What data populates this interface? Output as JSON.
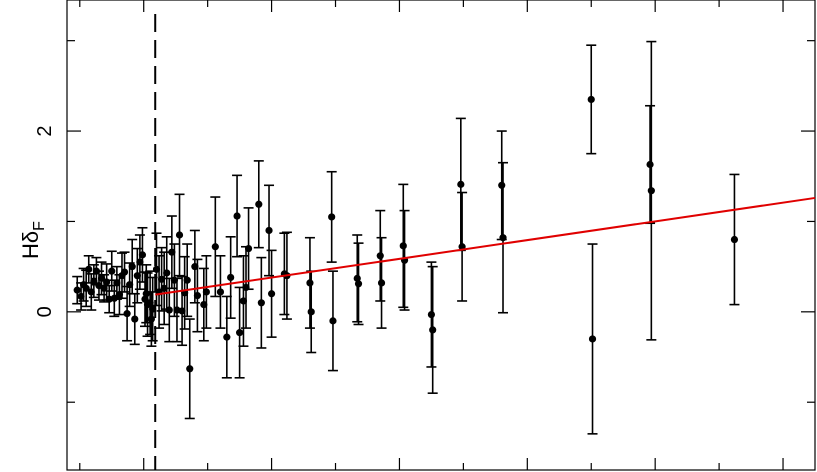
{
  "chart_data": {
    "type": "scatter",
    "title": "",
    "xlabel": "",
    "ylabel": "Hδ",
    "ylabel_subscript": "F",
    "xlim": [
      -0.6,
      5.25
    ],
    "ylim": [
      -1.75,
      3.45
    ],
    "x_major_ticks": [
      0,
      1,
      2,
      3,
      4,
      5
    ],
    "x_minor_ticks": [
      -0.5,
      0.5,
      1.5,
      2.5,
      3.5,
      4.5
    ],
    "y_major_ticks": [
      0,
      2
    ],
    "y_minor_ticks": [
      -1,
      1,
      3
    ],
    "y_tick_labels": [
      "0",
      "2"
    ],
    "grid": false,
    "colors": {
      "points": "#000000",
      "fit_line": "#e00000",
      "threshold_line": "#000000"
    },
    "vertical_dashed_line_x": 0.09,
    "fit_line": {
      "x": [
        0.09,
        5.25
      ],
      "y": [
        0.19,
        1.26
      ]
    },
    "points": [
      {
        "x": -0.52,
        "y": 0.24,
        "err": 0.15
      },
      {
        "x": -0.49,
        "y": 0.17,
        "err": 0.15
      },
      {
        "x": -0.47,
        "y": 0.3,
        "err": 0.18
      },
      {
        "x": -0.45,
        "y": 0.26,
        "err": 0.2
      },
      {
        "x": -0.43,
        "y": 0.47,
        "err": 0.15
      },
      {
        "x": -0.41,
        "y": 0.22,
        "err": 0.2
      },
      {
        "x": -0.39,
        "y": 0.34,
        "err": 0.18
      },
      {
        "x": -0.37,
        "y": 0.45,
        "err": 0.15
      },
      {
        "x": -0.35,
        "y": 0.29,
        "err": 0.16
      },
      {
        "x": -0.33,
        "y": 0.37,
        "err": 0.18
      },
      {
        "x": -0.31,
        "y": 0.26,
        "err": 0.15
      },
      {
        "x": -0.29,
        "y": 0.33,
        "err": 0.2
      },
      {
        "x": -0.27,
        "y": 0.14,
        "err": 0.15
      },
      {
        "x": -0.25,
        "y": 0.45,
        "err": 0.22
      },
      {
        "x": -0.23,
        "y": 0.15,
        "err": 0.2
      },
      {
        "x": -0.21,
        "y": 0.32,
        "err": 0.18
      },
      {
        "x": -0.19,
        "y": 0.19,
        "err": 0.22
      },
      {
        "x": -0.17,
        "y": 0.4,
        "err": 0.25
      },
      {
        "x": -0.15,
        "y": 0.44,
        "err": 0.22
      },
      {
        "x": -0.13,
        "y": -0.02,
        "err": 0.3
      },
      {
        "x": -0.11,
        "y": 0.3,
        "err": 0.24
      },
      {
        "x": -0.09,
        "y": 0.5,
        "err": 0.3
      },
      {
        "x": -0.07,
        "y": -0.08,
        "err": 0.28
      },
      {
        "x": -0.05,
        "y": 0.4,
        "err": 0.3
      },
      {
        "x": -0.03,
        "y": 0.55,
        "err": 0.3
      },
      {
        "x": -0.01,
        "y": 0.63,
        "err": 0.3
      },
      {
        "x": 0.01,
        "y": 0.14,
        "err": 0.3
      },
      {
        "x": 0.02,
        "y": 0.2,
        "err": 0.32
      },
      {
        "x": 0.03,
        "y": 0.08,
        "err": 0.35
      },
      {
        "x": 0.05,
        "y": 0.1,
        "err": 0.35
      },
      {
        "x": 0.06,
        "y": -0.08,
        "err": 0.3
      },
      {
        "x": 0.07,
        "y": 0.03,
        "err": 0.35
      },
      {
        "x": 0.1,
        "y": 0.47,
        "err": 0.4
      },
      {
        "x": 0.12,
        "y": 0.22,
        "err": 0.4
      },
      {
        "x": 0.14,
        "y": 0.36,
        "err": 0.35
      },
      {
        "x": 0.16,
        "y": 0.26,
        "err": 0.4
      },
      {
        "x": 0.18,
        "y": 0.43,
        "err": 0.4
      },
      {
        "x": 0.2,
        "y": 0.02,
        "err": 0.35
      },
      {
        "x": 0.22,
        "y": 0.66,
        "err": 0.4
      },
      {
        "x": 0.24,
        "y": 0.35,
        "err": 0.4
      },
      {
        "x": 0.26,
        "y": 0.02,
        "err": 0.35
      },
      {
        "x": 0.28,
        "y": 0.85,
        "err": 0.45
      },
      {
        "x": 0.3,
        "y": 0.01,
        "err": 0.38
      },
      {
        "x": 0.32,
        "y": 0.21,
        "err": 0.4
      },
      {
        "x": 0.34,
        "y": 0.35,
        "err": 0.4
      },
      {
        "x": 0.36,
        "y": -0.63,
        "err": 0.55
      },
      {
        "x": 0.4,
        "y": 0.5,
        "err": 0.4
      },
      {
        "x": 0.42,
        "y": 0.18,
        "err": 0.4
      },
      {
        "x": 0.47,
        "y": 0.08,
        "err": 0.4
      },
      {
        "x": 0.49,
        "y": 0.22,
        "err": 0.4
      },
      {
        "x": 0.56,
        "y": 0.72,
        "err": 0.55
      },
      {
        "x": 0.6,
        "y": 0.22,
        "err": 0.4
      },
      {
        "x": 0.65,
        "y": -0.28,
        "err": 0.45
      },
      {
        "x": 0.68,
        "y": 0.38,
        "err": 0.45
      },
      {
        "x": 0.73,
        "y": 1.06,
        "err": 0.45
      },
      {
        "x": 0.75,
        "y": -0.23,
        "err": 0.5
      },
      {
        "x": 0.78,
        "y": 0.12,
        "err": 0.5
      },
      {
        "x": 0.8,
        "y": 0.27,
        "err": 0.45
      },
      {
        "x": 0.82,
        "y": 0.7,
        "err": 0.45
      },
      {
        "x": 0.9,
        "y": 1.19,
        "err": 0.48
      },
      {
        "x": 0.92,
        "y": 0.1,
        "err": 0.5
      },
      {
        "x": 0.98,
        "y": 0.9,
        "err": 0.5
      },
      {
        "x": 1.0,
        "y": 0.2,
        "err": 0.48
      },
      {
        "x": 1.1,
        "y": 0.42,
        "err": 0.45
      },
      {
        "x": 1.12,
        "y": 0.4,
        "err": 0.48
      },
      {
        "x": 1.3,
        "y": 0.32,
        "err": 0.5
      },
      {
        "x": 1.31,
        "y": 0.0,
        "err": 0.45
      },
      {
        "x": 1.47,
        "y": 1.05,
        "err": 0.5
      },
      {
        "x": 1.48,
        "y": -0.1,
        "err": 0.55
      },
      {
        "x": 1.67,
        "y": 0.37,
        "err": 0.48
      },
      {
        "x": 1.68,
        "y": 0.31,
        "err": 0.45
      },
      {
        "x": 1.85,
        "y": 0.62,
        "err": 0.5
      },
      {
        "x": 1.86,
        "y": 0.32,
        "err": 0.5
      },
      {
        "x": 2.03,
        "y": 0.73,
        "err": 0.68
      },
      {
        "x": 2.04,
        "y": 0.57,
        "err": 0.55
      },
      {
        "x": 2.25,
        "y": -0.03,
        "err": 0.58
      },
      {
        "x": 2.26,
        "y": -0.2,
        "err": 0.7
      },
      {
        "x": 2.48,
        "y": 1.41,
        "err": 0.73
      },
      {
        "x": 2.49,
        "y": 0.72,
        "err": 0.6
      },
      {
        "x": 2.8,
        "y": 1.4,
        "err": 0.6
      },
      {
        "x": 2.81,
        "y": 0.82,
        "err": 0.83
      },
      {
        "x": 3.5,
        "y": 2.35,
        "err": 0.6
      },
      {
        "x": 3.51,
        "y": -0.3,
        "err": 1.05
      },
      {
        "x": 3.96,
        "y": 1.63,
        "err": 0.65
      },
      {
        "x": 3.97,
        "y": 1.34,
        "err": 1.65
      },
      {
        "x": 4.62,
        "y": 0.8,
        "err": 0.72
      }
    ]
  }
}
